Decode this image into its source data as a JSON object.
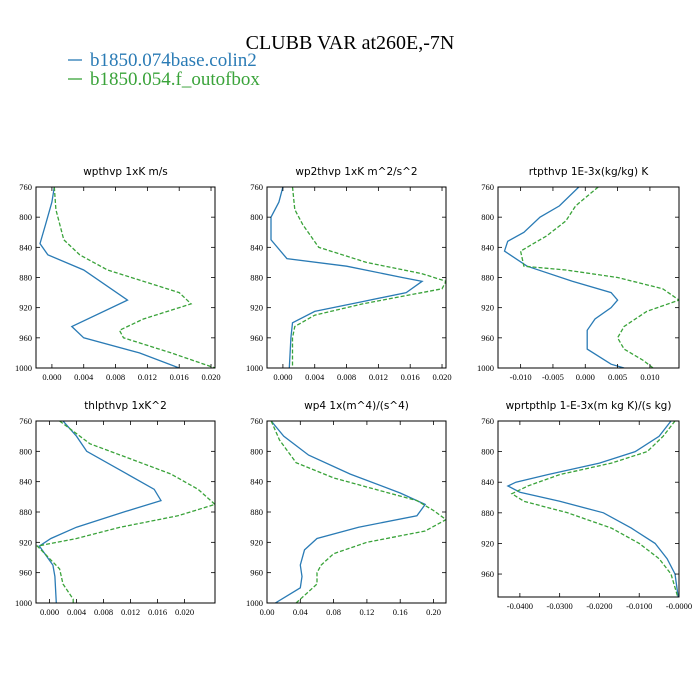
{
  "title": "CLUBB VAR at260E,-7N",
  "legend": [
    {
      "label": "b1850.074base.colin2",
      "color": "#2a7bb5",
      "dash": ""
    },
    {
      "label": "b1850.054.f_outofbox",
      "color": "#3aa33a",
      "dash": "4,2"
    }
  ],
  "chart_data": [
    {
      "type": "line",
      "title": "wpthvp  1xK m/s",
      "xlim": [
        -0.002,
        0.0205
      ],
      "ylim": [
        760,
        1000
      ],
      "xticks": [
        {
          "v": 0,
          "l": "0.000"
        },
        {
          "v": 0.004,
          "l": "0.004"
        },
        {
          "v": 0.008,
          "l": "0.008"
        },
        {
          "v": 0.012,
          "l": "0.012"
        },
        {
          "v": 0.016,
          "l": "0.016"
        },
        {
          "v": 0.02,
          "l": "0.020"
        }
      ],
      "yticks": [
        760,
        800,
        840,
        880,
        920,
        960,
        1000
      ],
      "series": [
        {
          "name": "b1850.074base.colin2",
          "points": [
            [
              0.0003,
              760
            ],
            [
              0.0,
              780
            ],
            [
              -0.0008,
              810
            ],
            [
              -0.0015,
              835
            ],
            [
              -0.0005,
              850
            ],
            [
              0.004,
              870
            ],
            [
              0.0095,
              910
            ],
            [
              0.0025,
              945
            ],
            [
              0.004,
              960
            ],
            [
              0.011,
              980
            ],
            [
              0.016,
              1000
            ]
          ]
        },
        {
          "name": "b1850.054.f_outofbox",
          "points": [
            [
              0.0003,
              760
            ],
            [
              0.0005,
              790
            ],
            [
              0.0015,
              830
            ],
            [
              0.0035,
              850
            ],
            [
              0.007,
              870
            ],
            [
              0.016,
              900
            ],
            [
              0.0175,
              915
            ],
            [
              0.0115,
              935
            ],
            [
              0.0085,
              950
            ],
            [
              0.009,
              960
            ],
            [
              0.015,
              980
            ],
            [
              0.0205,
              1000
            ]
          ]
        }
      ]
    },
    {
      "type": "line",
      "title": "wp2thvp  1xK m^2/s^2",
      "xlim": [
        -0.002,
        0.0205
      ],
      "ylim": [
        760,
        1000
      ],
      "xticks": [
        {
          "v": 0,
          "l": "0.000"
        },
        {
          "v": 0.004,
          "l": "0.004"
        },
        {
          "v": 0.008,
          "l": "0.008"
        },
        {
          "v": 0.012,
          "l": "0.012"
        },
        {
          "v": 0.016,
          "l": "0.016"
        },
        {
          "v": 0.02,
          "l": "0.020"
        }
      ],
      "yticks": [
        760,
        800,
        840,
        880,
        920,
        960,
        1000
      ],
      "series": [
        {
          "name": "b1850.074base.colin2",
          "points": [
            [
              0.0,
              760
            ],
            [
              -0.0005,
              780
            ],
            [
              -0.0015,
              800
            ],
            [
              -0.0015,
              830
            ],
            [
              0.0005,
              855
            ],
            [
              0.008,
              865
            ],
            [
              0.015,
              880
            ],
            [
              0.0175,
              885
            ],
            [
              0.0155,
              900
            ],
            [
              0.01,
              912
            ],
            [
              0.004,
              925
            ],
            [
              0.0012,
              940
            ],
            [
              0.001,
              960
            ],
            [
              0.0008,
              1000
            ]
          ]
        },
        {
          "name": "b1850.054.f_outofbox",
          "points": [
            [
              0.0012,
              760
            ],
            [
              0.0015,
              790
            ],
            [
              0.0025,
              810
            ],
            [
              0.0045,
              840
            ],
            [
              0.0105,
              860
            ],
            [
              0.0175,
              875
            ],
            [
              0.0205,
              885
            ],
            [
              0.02,
              895
            ],
            [
              0.01,
              915
            ],
            [
              0.004,
              930
            ],
            [
              0.0015,
              945
            ],
            [
              0.0012,
              960
            ],
            [
              0.0012,
              1000
            ]
          ]
        }
      ]
    },
    {
      "type": "line",
      "title": "rtpthvp  1E-3x(kg/kg) K",
      "xlim": [
        -0.0135,
        0.0145
      ],
      "ylim": [
        760,
        1000
      ],
      "xticks": [
        {
          "v": -0.01,
          "l": "-0.010"
        },
        {
          "v": -0.005,
          "l": "-0.005"
        },
        {
          "v": 0,
          "l": "0.000"
        },
        {
          "v": 0.005,
          "l": "0.005"
        },
        {
          "v": 0.01,
          "l": "0.010"
        }
      ],
      "yticks": [
        760,
        800,
        840,
        880,
        920,
        960,
        1000
      ],
      "series": [
        {
          "name": "b1850.074base.colin2",
          "points": [
            [
              -0.001,
              760
            ],
            [
              -0.004,
              785
            ],
            [
              -0.007,
              800
            ],
            [
              -0.0095,
              820
            ],
            [
              -0.012,
              832
            ],
            [
              -0.0125,
              845
            ],
            [
              -0.009,
              865
            ],
            [
              -0.002,
              885
            ],
            [
              0.004,
              900
            ],
            [
              0.005,
              910
            ],
            [
              0.004,
              920
            ],
            [
              0.0015,
              935
            ],
            [
              0.0003,
              950
            ],
            [
              0.0003,
              975
            ],
            [
              0.004,
              995
            ],
            [
              0.006,
              1000
            ]
          ]
        },
        {
          "name": "b1850.054.f_outofbox",
          "points": [
            [
              0.002,
              760
            ],
            [
              -0.0015,
              785
            ],
            [
              -0.003,
              805
            ],
            [
              -0.006,
              825
            ],
            [
              -0.01,
              845
            ],
            [
              -0.0095,
              865
            ],
            [
              -0.003,
              870
            ],
            [
              0.005,
              880
            ],
            [
              0.012,
              895
            ],
            [
              0.0145,
              910
            ],
            [
              0.0095,
              925
            ],
            [
              0.006,
              945
            ],
            [
              0.005,
              960
            ],
            [
              0.006,
              975
            ],
            [
              0.009,
              990
            ],
            [
              0.0105,
              1000
            ]
          ]
        }
      ]
    },
    {
      "type": "line",
      "title": "thlpthvp  1xK^2",
      "xlim": [
        -0.002,
        0.0245
      ],
      "ylim": [
        760,
        1000
      ],
      "xticks": [
        {
          "v": 0,
          "l": "0.000"
        },
        {
          "v": 0.004,
          "l": "0.004"
        },
        {
          "v": 0.008,
          "l": "0.008"
        },
        {
          "v": 0.012,
          "l": "0.012"
        },
        {
          "v": 0.016,
          "l": "0.016"
        },
        {
          "v": 0.02,
          "l": "0.020"
        }
      ],
      "yticks": [
        760,
        800,
        840,
        880,
        920,
        960,
        1000
      ],
      "series": [
        {
          "name": "b1850.074base.colin2",
          "points": [
            [
              0.002,
              760
            ],
            [
              0.004,
              780
            ],
            [
              0.0055,
              800
            ],
            [
              0.0115,
              830
            ],
            [
              0.0155,
              850
            ],
            [
              0.0165,
              865
            ],
            [
              0.011,
              880
            ],
            [
              0.004,
              900
            ],
            [
              0.0002,
              915
            ],
            [
              -0.0015,
              925
            ],
            [
              0.0005,
              950
            ],
            [
              0.0008,
              965
            ],
            [
              0.001,
              1000
            ]
          ]
        },
        {
          "name": "b1850.054.f_outofbox",
          "points": [
            [
              0.0015,
              760
            ],
            [
              0.006,
              790
            ],
            [
              0.012,
              810
            ],
            [
              0.018,
              830
            ],
            [
              0.022,
              850
            ],
            [
              0.0245,
              870
            ],
            [
              0.019,
              885
            ],
            [
              0.0105,
              900
            ],
            [
              0.004,
              915
            ],
            [
              -0.0018,
              925
            ],
            [
              0.0015,
              955
            ],
            [
              0.002,
              975
            ],
            [
              0.0035,
              995
            ],
            [
              0.0035,
              1000
            ]
          ]
        }
      ]
    },
    {
      "type": "line",
      "title": "wp4  1x(m^4)/(s^4)",
      "xlim": [
        0.0,
        0.215
      ],
      "ylim": [
        760,
        1000
      ],
      "xticks": [
        {
          "v": 0,
          "l": "0.00"
        },
        {
          "v": 0.04,
          "l": "0.04"
        },
        {
          "v": 0.08,
          "l": "0.08"
        },
        {
          "v": 0.12,
          "l": "0.12"
        },
        {
          "v": 0.16,
          "l": "0.16"
        },
        {
          "v": 0.2,
          "l": "0.20"
        }
      ],
      "yticks": [
        760,
        800,
        840,
        880,
        920,
        960,
        1000
      ],
      "series": [
        {
          "name": "b1850.074base.colin2",
          "points": [
            [
              0.005,
              760
            ],
            [
              0.02,
              780
            ],
            [
              0.05,
              805
            ],
            [
              0.1,
              830
            ],
            [
              0.16,
              855
            ],
            [
              0.19,
              870
            ],
            [
              0.18,
              885
            ],
            [
              0.11,
              900
            ],
            [
              0.06,
              915
            ],
            [
              0.045,
              930
            ],
            [
              0.04,
              950
            ],
            [
              0.042,
              965
            ],
            [
              0.04,
              980
            ],
            [
              0.025,
              990
            ],
            [
              0.01,
              1000
            ]
          ]
        },
        {
          "name": "b1850.054.f_outofbox",
          "points": [
            [
              0.005,
              760
            ],
            [
              0.015,
              785
            ],
            [
              0.035,
              815
            ],
            [
              0.08,
              835
            ],
            [
              0.13,
              850
            ],
            [
              0.18,
              865
            ],
            [
              0.2,
              878
            ],
            [
              0.215,
              890
            ],
            [
              0.19,
              905
            ],
            [
              0.12,
              920
            ],
            [
              0.08,
              935
            ],
            [
              0.065,
              950
            ],
            [
              0.06,
              960
            ],
            [
              0.06,
              975
            ],
            [
              0.045,
              990
            ],
            [
              0.035,
              1000
            ]
          ]
        }
      ]
    },
    {
      "type": "line",
      "title": "wprtpthlp  1-E-3x(m kg K)/(s kg)",
      "xlim": [
        -0.0455,
        0.0
      ],
      "ylim": [
        760,
        990
      ],
      "xticks": [
        {
          "v": -0.04,
          "l": "-0.0400"
        },
        {
          "v": -0.03,
          "l": "-0.0300"
        },
        {
          "v": -0.02,
          "l": "-0.0200"
        },
        {
          "v": -0.01,
          "l": "-0.0100"
        },
        {
          "v": 0,
          "l": "-0.0000"
        }
      ],
      "yticks": [
        760,
        800,
        840,
        880,
        920,
        960
      ],
      "series": [
        {
          "name": "b1850.074base.colin2",
          "points": [
            [
              -0.002,
              760
            ],
            [
              -0.005,
              780
            ],
            [
              -0.011,
              800
            ],
            [
              -0.02,
              815
            ],
            [
              -0.033,
              830
            ],
            [
              -0.041,
              840
            ],
            [
              -0.043,
              845
            ],
            [
              -0.04,
              853
            ],
            [
              -0.03,
              865
            ],
            [
              -0.019,
              880
            ],
            [
              -0.012,
              900
            ],
            [
              -0.006,
              920
            ],
            [
              -0.003,
              940
            ],
            [
              -0.001,
              960
            ],
            [
              -0.0002,
              990
            ]
          ]
        },
        {
          "name": "b1850.054.f_outofbox",
          "points": [
            [
              -0.001,
              760
            ],
            [
              -0.004,
              780
            ],
            [
              -0.008,
              800
            ],
            [
              -0.017,
              815
            ],
            [
              -0.03,
              830
            ],
            [
              -0.038,
              845
            ],
            [
              -0.042,
              855
            ],
            [
              -0.039,
              865
            ],
            [
              -0.028,
              880
            ],
            [
              -0.017,
              900
            ],
            [
              -0.01,
              920
            ],
            [
              -0.005,
              940
            ],
            [
              -0.002,
              960
            ],
            [
              -0.0003,
              990
            ]
          ]
        }
      ]
    }
  ]
}
